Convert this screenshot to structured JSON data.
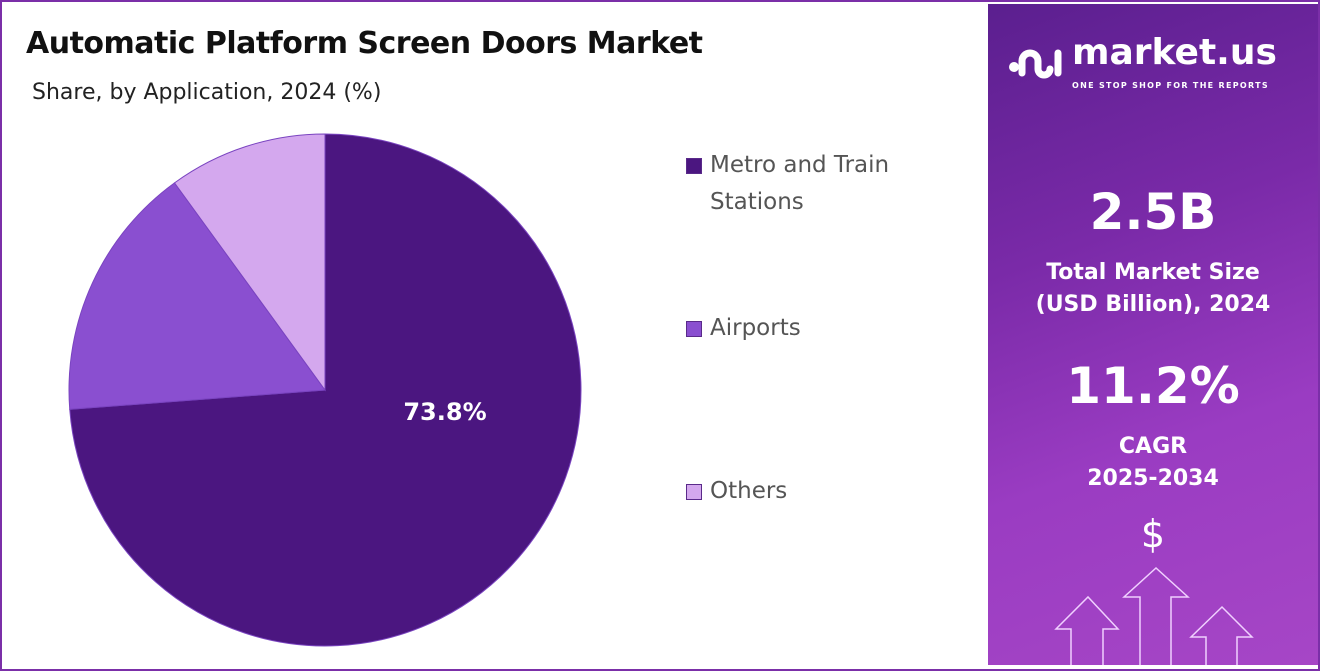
{
  "chart_data": {
    "type": "pie",
    "title": "Automatic Platform Screen Doors Market",
    "subtitle": "Share, by Application, 2024 (%)",
    "categories": [
      "Metro and Train Stations",
      "Airports",
      "Others"
    ],
    "values": [
      73.8,
      16.2,
      10.0
    ],
    "data_labels": [
      "73.8%",
      "",
      ""
    ],
    "colors": [
      "#4b1680",
      "#8a4fd0",
      "#d4a8ee"
    ],
    "start_angle": "top, clockwise",
    "legend_placement": "right"
  },
  "panel": {
    "brand": "market.us",
    "tagline": "ONE STOP SHOP FOR THE REPORTS",
    "market_size_value": "2.5B",
    "market_size_label_1": "Total Market Size",
    "market_size_label_2": "(USD Billion), 2024",
    "cagr_value": "11.2%",
    "cagr_label_1": "CAGR",
    "cagr_label_2": "2025-2034",
    "dollar": "$"
  }
}
